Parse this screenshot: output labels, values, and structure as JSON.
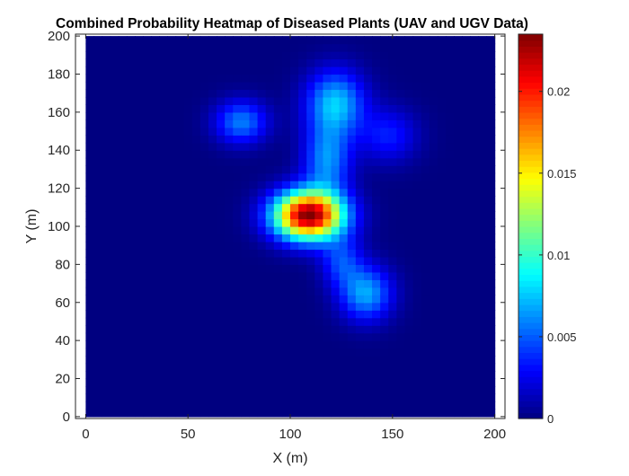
{
  "figure": {
    "title": "Combined Probability Heatmap of Diseased Plants (UAV and UGV Data)"
  },
  "chart_data": {
    "type": "heatmap",
    "title": "Combined Probability Heatmap of Diseased Plants (UAV and UGV Data)",
    "xlabel": "X (m)",
    "ylabel": "Y (m)",
    "xlim": [
      -5,
      205
    ],
    "ylim": [
      -1,
      201
    ],
    "data_extent": {
      "x": [
        0,
        200
      ],
      "y": [
        0,
        200
      ]
    },
    "xticks": [
      0,
      50,
      100,
      150,
      200
    ],
    "yticks": [
      0,
      20,
      40,
      60,
      80,
      100,
      120,
      140,
      160,
      180,
      200
    ],
    "colormap": "jet",
    "colorbar": {
      "range": [
        0,
        0.0235
      ],
      "ticks": [
        0,
        0.005,
        0.01,
        0.015,
        0.02
      ],
      "tick_labels": [
        "0",
        "0.005",
        "0.01",
        "0.015",
        "0.02"
      ]
    },
    "peak_value": 0.0235,
    "sources": [
      {
        "x": 109,
        "y": 106,
        "sigma_x": 12,
        "sigma_y": 9,
        "amplitude": 0.0235
      },
      {
        "x": 122,
        "y": 165,
        "sigma_x": 10,
        "sigma_y": 12,
        "amplitude": 0.0075
      },
      {
        "x": 76,
        "y": 155,
        "sigma_x": 9,
        "sigma_y": 8,
        "amplitude": 0.0058
      },
      {
        "x": 137,
        "y": 65,
        "sigma_x": 9,
        "sigma_y": 10,
        "amplitude": 0.0068
      },
      {
        "x": 118,
        "y": 135,
        "sigma_x": 8,
        "sigma_y": 13,
        "amplitude": 0.0062
      },
      {
        "x": 148,
        "y": 148,
        "sigma_x": 10,
        "sigma_y": 10,
        "amplitude": 0.0035
      },
      {
        "x": 125,
        "y": 82,
        "sigma_x": 7,
        "sigma_y": 9,
        "amplitude": 0.0042
      }
    ],
    "grid": false
  }
}
